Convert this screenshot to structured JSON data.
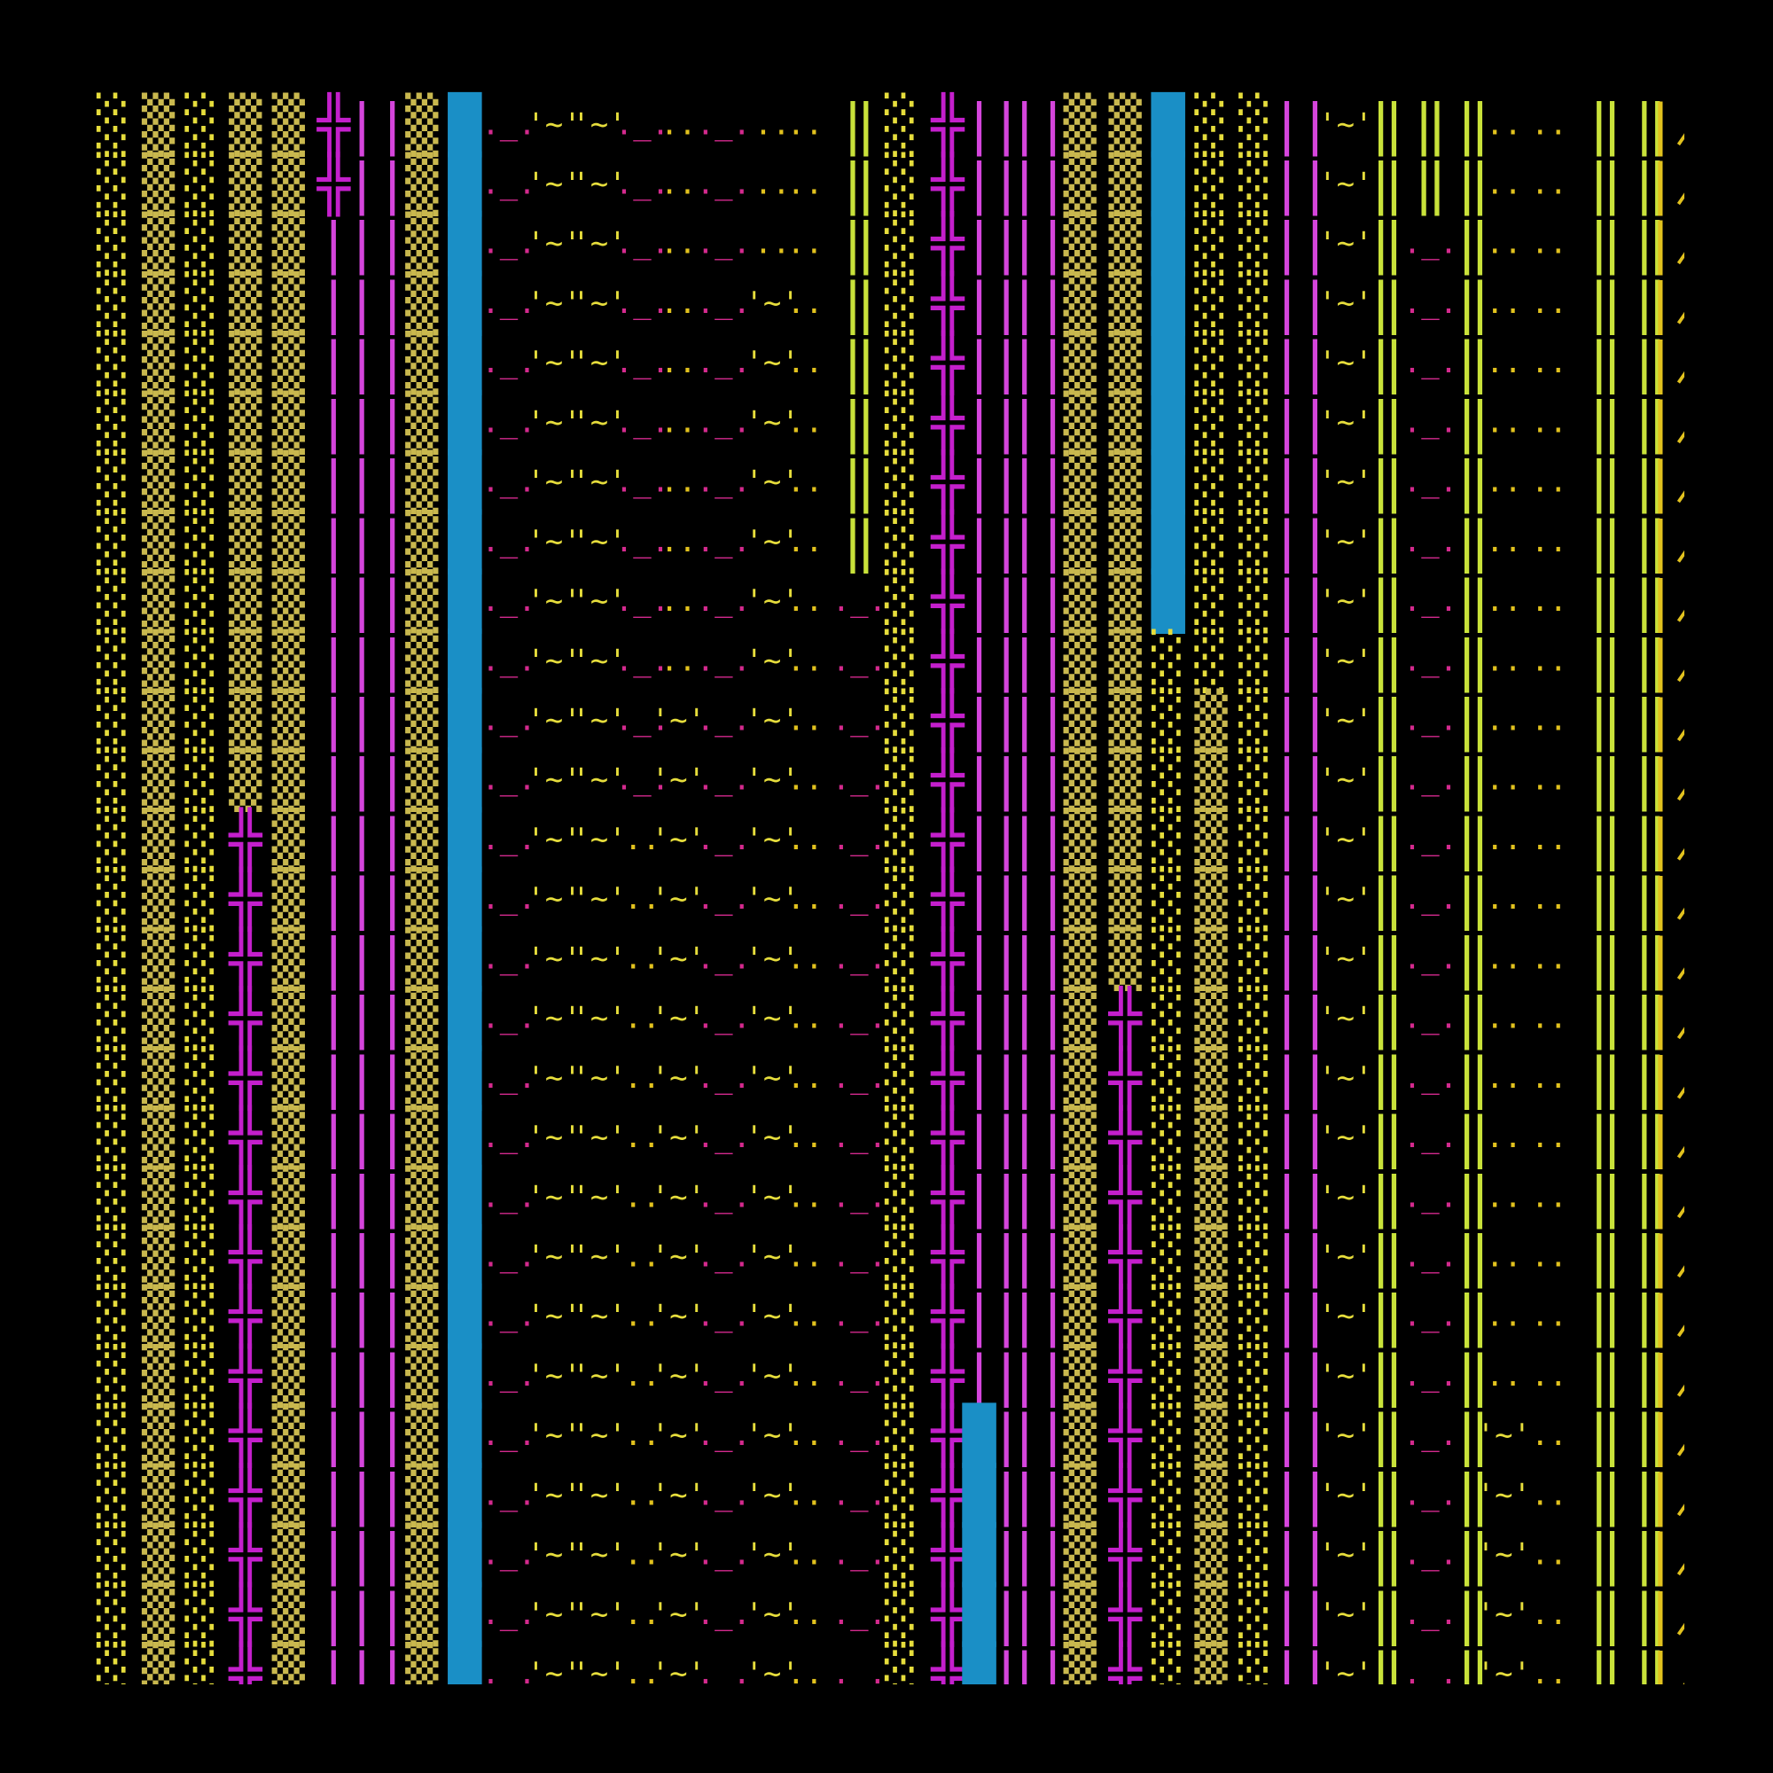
{
  "rows": [
    [
      "░",
      "▒",
      "░",
      "▒",
      "▒",
      "╬",
      "|",
      "|",
      "▒",
      "█",
      "._.",
      "'~'",
      "'~'",
      "._.",
      "..",
      "._.",
      "..",
      "..",
      "‖",
      "░",
      "╬",
      "|",
      "|",
      "|",
      "|",
      "▒",
      "▒",
      "█",
      "░",
      "░",
      "|",
      "|",
      "'~'",
      "‖",
      "‖",
      "‖",
      "..",
      "..",
      "‖",
      "‖",
      "∤"
    ],
    [
      "░",
      "▒",
      "░",
      "▒",
      "▒",
      "╬",
      "|",
      "|",
      "▒",
      "█",
      "._.",
      "'~'",
      "'~'",
      "._.",
      "..",
      "._.",
      "..",
      "..",
      "‖",
      "░",
      "╬",
      "|",
      "|",
      "|",
      "|",
      "▒",
      "▒",
      "█",
      "░",
      "░",
      "|",
      "|",
      "'~'",
      "‖",
      "‖",
      "‖",
      "..",
      "..",
      "‖",
      "‖",
      "∤"
    ],
    [
      "░",
      "▒",
      "░",
      "▒",
      "▒",
      "|",
      "|",
      "|",
      "▒",
      "█",
      "._.",
      "'~'",
      "'~'",
      "._.",
      "..",
      "._.",
      "..",
      "..",
      "‖",
      "░",
      "╬",
      "|",
      "|",
      "|",
      "|",
      "▒",
      "▒",
      "█",
      "░",
      "░",
      "|",
      "|",
      "'~'",
      "‖",
      "._.",
      "‖",
      "..",
      "..",
      "‖",
      "‖",
      "∤"
    ],
    [
      "░",
      "▒",
      "░",
      "▒",
      "▒",
      "|",
      "|",
      "|",
      "▒",
      "█",
      "._.",
      "'~'",
      "'~'",
      "._.",
      "..",
      "._.",
      "'~'",
      "..",
      "‖",
      "░",
      "╬",
      "|",
      "|",
      "|",
      "|",
      "▒",
      "▒",
      "█",
      "░",
      "░",
      "|",
      "|",
      "'~'",
      "‖",
      "._.",
      "‖",
      "..",
      "..",
      "‖",
      "‖",
      "∤"
    ],
    [
      "░",
      "▒",
      "░",
      "▒",
      "▒",
      "|",
      "|",
      "|",
      "▒",
      "█",
      "._.",
      "'~'",
      "'~'",
      "._.",
      "..",
      "._.",
      "'~'",
      "..",
      "‖",
      "░",
      "╬",
      "|",
      "|",
      "|",
      "|",
      "▒",
      "▒",
      "█",
      "░",
      "░",
      "|",
      "|",
      "'~'",
      "‖",
      "._.",
      "‖",
      "..",
      "..",
      "‖",
      "‖",
      "∤"
    ],
    [
      "░",
      "▒",
      "░",
      "▒",
      "▒",
      "|",
      "|",
      "|",
      "▒",
      "█",
      "._.",
      "'~'",
      "'~'",
      "._.",
      "..",
      "._.",
      "'~'",
      "..",
      "‖",
      "░",
      "╬",
      "|",
      "|",
      "|",
      "|",
      "▒",
      "▒",
      "█",
      "░",
      "░",
      "|",
      "|",
      "'~'",
      "‖",
      "._.",
      "‖",
      "..",
      "..",
      "‖",
      "‖",
      "∤"
    ],
    [
      "░",
      "▒",
      "░",
      "▒",
      "▒",
      "|",
      "|",
      "|",
      "▒",
      "█",
      "._.",
      "'~'",
      "'~'",
      "._.",
      "..",
      "._.",
      "'~'",
      "..",
      "‖",
      "░",
      "╬",
      "|",
      "|",
      "|",
      "|",
      "▒",
      "▒",
      "█",
      "░",
      "░",
      "|",
      "|",
      "'~'",
      "‖",
      "._.",
      "‖",
      "..",
      "..",
      "‖",
      "‖",
      "∤"
    ],
    [
      "░",
      "▒",
      "░",
      "▒",
      "▒",
      "|",
      "|",
      "|",
      "▒",
      "█",
      "._.",
      "'~'",
      "'~'",
      "._.",
      "..",
      "._.",
      "'~'",
      "..",
      "‖",
      "░",
      "╬",
      "|",
      "|",
      "|",
      "|",
      "▒",
      "▒",
      "█",
      "░",
      "░",
      "|",
      "|",
      "'~'",
      "‖",
      "._.",
      "‖",
      "..",
      "..",
      "‖",
      "‖",
      "∤"
    ],
    [
      "░",
      "▒",
      "░",
      "▒",
      "▒",
      "|",
      "|",
      "|",
      "▒",
      "█",
      "._.",
      "'~'",
      "'~'",
      "._.",
      "..",
      "._.",
      "'~'",
      "..",
      "._.",
      "░",
      "╬",
      "|",
      "|",
      "|",
      "|",
      "▒",
      "▒",
      "█",
      "░",
      "░",
      "|",
      "|",
      "'~'",
      "‖",
      "._.",
      "‖",
      "..",
      "..",
      "‖",
      "‖",
      "∤"
    ],
    [
      "░",
      "▒",
      "░",
      "▒",
      "▒",
      "|",
      "|",
      "|",
      "▒",
      "█",
      "._.",
      "'~'",
      "'~'",
      "._.",
      "..",
      "._.",
      "'~'",
      "..",
      "._.",
      "░",
      "╬",
      "|",
      "|",
      "|",
      "|",
      "▒",
      "▒",
      "░",
      "░",
      "░",
      "|",
      "|",
      "'~'",
      "‖",
      "._.",
      "‖",
      "..",
      "..",
      "‖",
      "‖",
      "∤"
    ],
    [
      "░",
      "▒",
      "░",
      "▒",
      "▒",
      "|",
      "|",
      "|",
      "▒",
      "█",
      "._.",
      "'~'",
      "'~'",
      "._.",
      "'~'",
      "._.",
      "'~'",
      "..",
      "._.",
      "░",
      "╬",
      "|",
      "|",
      "|",
      "|",
      "▒",
      "▒",
      "░",
      "▒",
      "░",
      "|",
      "|",
      "'~'",
      "‖",
      "._.",
      "‖",
      "..",
      "..",
      "‖",
      "‖",
      "∤"
    ],
    [
      "░",
      "▒",
      "░",
      "▒",
      "▒",
      "|",
      "|",
      "|",
      "▒",
      "█",
      "._.",
      "'~'",
      "'~'",
      "._.",
      "'~'",
      "._.",
      "'~'",
      "..",
      "._.",
      "░",
      "╬",
      "|",
      "|",
      "|",
      "|",
      "▒",
      "▒",
      "░",
      "▒",
      "░",
      "|",
      "|",
      "'~'",
      "‖",
      "._.",
      "‖",
      "..",
      "..",
      "‖",
      "‖",
      "∤"
    ],
    [
      "░",
      "▒",
      "░",
      "╬",
      "▒",
      "|",
      "|",
      "|",
      "▒",
      "█",
      "._.",
      "'~'",
      "'~'",
      "..",
      "'~'",
      "._.",
      "'~'",
      "..",
      "._.",
      "░",
      "╬",
      "|",
      "|",
      "|",
      "|",
      "▒",
      "▒",
      "░",
      "▒",
      "░",
      "|",
      "|",
      "'~'",
      "‖",
      "._.",
      "‖",
      "..",
      "..",
      "‖",
      "‖",
      "∤"
    ],
    [
      "░",
      "▒",
      "░",
      "╬",
      "▒",
      "|",
      "|",
      "|",
      "▒",
      "█",
      "._.",
      "'~'",
      "'~'",
      "..",
      "'~'",
      "._.",
      "'~'",
      "..",
      "._.",
      "░",
      "╬",
      "|",
      "|",
      "|",
      "|",
      "▒",
      "▒",
      "░",
      "▒",
      "░",
      "|",
      "|",
      "'~'",
      "‖",
      "._.",
      "‖",
      "..",
      "..",
      "‖",
      "‖",
      "∤"
    ],
    [
      "░",
      "▒",
      "░",
      "╬",
      "▒",
      "|",
      "|",
      "|",
      "▒",
      "█",
      "._.",
      "'~'",
      "'~'",
      "..",
      "'~'",
      "._.",
      "'~'",
      "..",
      "._.",
      "░",
      "╬",
      "|",
      "|",
      "|",
      "|",
      "▒",
      "▒",
      "░",
      "▒",
      "░",
      "|",
      "|",
      "'~'",
      "‖",
      "._.",
      "‖",
      "..",
      "..",
      "‖",
      "‖",
      "∤"
    ],
    [
      "░",
      "▒",
      "░",
      "╬",
      "▒",
      "|",
      "|",
      "|",
      "▒",
      "█",
      "._.",
      "'~'",
      "'~'",
      "..",
      "'~'",
      "._.",
      "'~'",
      "..",
      "._.",
      "░",
      "╬",
      "|",
      "|",
      "|",
      "|",
      "▒",
      "╬",
      "░",
      "▒",
      "░",
      "|",
      "|",
      "'~'",
      "‖",
      "._.",
      "‖",
      "..",
      "..",
      "‖",
      "‖",
      "∤"
    ],
    [
      "░",
      "▒",
      "░",
      "╬",
      "▒",
      "|",
      "|",
      "|",
      "▒",
      "█",
      "._.",
      "'~'",
      "'~'",
      "..",
      "'~'",
      "._.",
      "'~'",
      "..",
      "._.",
      "░",
      "╬",
      "|",
      "|",
      "|",
      "|",
      "▒",
      "╬",
      "░",
      "▒",
      "░",
      "|",
      "|",
      "'~'",
      "‖",
      "._.",
      "‖",
      "..",
      "..",
      "‖",
      "‖",
      "∤"
    ],
    [
      "░",
      "▒",
      "░",
      "╬",
      "▒",
      "|",
      "|",
      "|",
      "▒",
      "█",
      "._.",
      "'~'",
      "'~'",
      "..",
      "'~'",
      "._.",
      "'~'",
      "..",
      "._.",
      "░",
      "╬",
      "|",
      "|",
      "|",
      "|",
      "▒",
      "╬",
      "░",
      "▒",
      "░",
      "|",
      "|",
      "'~'",
      "‖",
      "._.",
      "‖",
      "..",
      "..",
      "‖",
      "‖",
      "∤"
    ],
    [
      "░",
      "▒",
      "░",
      "╬",
      "▒",
      "|",
      "|",
      "|",
      "▒",
      "█",
      "._.",
      "'~'",
      "'~'",
      "..",
      "'~'",
      "._.",
      "'~'",
      "..",
      "._.",
      "░",
      "╬",
      "|",
      "|",
      "|",
      "|",
      "▒",
      "╬",
      "░",
      "▒",
      "░",
      "|",
      "|",
      "'~'",
      "‖",
      "._.",
      "‖",
      "..",
      "..",
      "‖",
      "‖",
      "∤"
    ],
    [
      "░",
      "▒",
      "░",
      "╬",
      "▒",
      "|",
      "|",
      "|",
      "▒",
      "█",
      "._.",
      "'~'",
      "'~'",
      "..",
      "'~'",
      "._.",
      "'~'",
      "..",
      "._.",
      "░",
      "╬",
      "|",
      "|",
      "|",
      "|",
      "▒",
      "╬",
      "░",
      "▒",
      "░",
      "|",
      "|",
      "'~'",
      "‖",
      "._.",
      "‖",
      "..",
      "..",
      "‖",
      "‖",
      "∤"
    ],
    [
      "░",
      "▒",
      "░",
      "╬",
      "▒",
      "|",
      "|",
      "|",
      "▒",
      "█",
      "._.",
      "'~'",
      "'~'",
      "..",
      "'~'",
      "._.",
      "'~'",
      "..",
      "._.",
      "░",
      "╬",
      "|",
      "|",
      "|",
      "|",
      "▒",
      "╬",
      "░",
      "▒",
      "░",
      "|",
      "|",
      "'~'",
      "‖",
      "._.",
      "‖",
      "..",
      "..",
      "‖",
      "‖",
      "∤"
    ],
    [
      "░",
      "▒",
      "░",
      "╬",
      "▒",
      "|",
      "|",
      "|",
      "▒",
      "█",
      "._.",
      "'~'",
      "'~'",
      "..",
      "'~'",
      "._.",
      "'~'",
      "..",
      "._.",
      "░",
      "╬",
      "|",
      "|",
      "|",
      "|",
      "▒",
      "╬",
      "░",
      "▒",
      "░",
      "|",
      "|",
      "'~'",
      "‖",
      "._.",
      "‖",
      "..",
      "..",
      "‖",
      "‖",
      "∤"
    ],
    [
      "░",
      "▒",
      "░",
      "╬",
      "▒",
      "|",
      "|",
      "|",
      "▒",
      "█",
      "._.",
      "'~'",
      "'~'",
      "..",
      "'~'",
      "._.",
      "'~'",
      "..",
      "._.",
      "░",
      "╬",
      "█",
      "|",
      "|",
      "|",
      "▒",
      "╬",
      "░",
      "▒",
      "░",
      "|",
      "|",
      "'~'",
      "‖",
      "._.",
      "‖",
      "'~'",
      "..",
      "‖",
      "‖",
      "∤"
    ],
    [
      "░",
      "▒",
      "░",
      "╬",
      "▒",
      "|",
      "|",
      "|",
      "▒",
      "█",
      "._.",
      "'~'",
      "'~'",
      "..",
      "'~'",
      "._.",
      "'~'",
      "..",
      "._.",
      "░",
      "╬",
      "█",
      "|",
      "|",
      "|",
      "▒",
      "╬",
      "░",
      "▒",
      "░",
      "|",
      "|",
      "'~'",
      "‖",
      "._.",
      "‖",
      "'~'",
      "..",
      "‖",
      "‖",
      "∤"
    ],
    [
      "░",
      "▒",
      "░",
      "╬",
      "▒",
      "|",
      "|",
      "|",
      "▒",
      "█",
      "._.",
      "'~'",
      "'~'",
      "..",
      "'~'",
      "._.",
      "'~'",
      "..",
      "._.",
      "░",
      "╬",
      "█",
      "|",
      "|",
      "|",
      "▒",
      "╬",
      "░",
      "▒",
      "░",
      "|",
      "|",
      "'~'",
      "‖",
      "._.",
      "‖",
      "'~'",
      "..",
      "‖",
      "‖",
      "∤"
    ],
    [
      "░",
      "▒",
      "░",
      "╬",
      "▒",
      "|",
      "|",
      "|",
      "▒",
      "█",
      "._.",
      "'~'",
      "'~'",
      "..",
      "'~'",
      "._.",
      "'~'",
      "..",
      "._.",
      "░",
      "╬",
      "█",
      "|",
      "|",
      "|",
      "▒",
      "╬",
      "░",
      "▒",
      "░",
      "|",
      "|",
      "'~'",
      "‖",
      "._.",
      "‖",
      "'~'",
      "..",
      "‖",
      "‖",
      "∤"
    ],
    [
      "░",
      "▒",
      "░",
      "╬",
      "▒",
      "|",
      "|",
      "|",
      "▒",
      "█",
      "._.",
      "'~'",
      "'~'",
      "..",
      "'~'",
      "._.",
      "'~'",
      "..",
      "._.",
      "░",
      "╬",
      "█",
      "|",
      "|",
      "|",
      "▒",
      "╬",
      "░",
      "▒",
      "░",
      "|",
      "|",
      "'~'",
      "‖",
      "._.",
      "‖",
      "'~'",
      "..",
      "‖",
      "‖",
      "∤"
    ]
  ]
}
